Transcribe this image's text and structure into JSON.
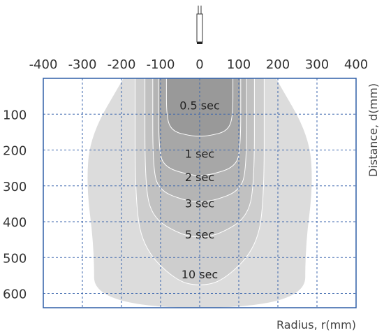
{
  "chart_data": {
    "type": "area",
    "x_axis": {
      "label": "Radius, r(mm)",
      "range": [
        -400,
        400
      ],
      "ticks": [
        -400,
        -300,
        -200,
        -100,
        0,
        100,
        200,
        300,
        400
      ],
      "tick_labels": [
        "-400",
        "-300",
        "-200",
        "-100",
        "0",
        "100",
        "200",
        "300",
        "400"
      ],
      "position": "top"
    },
    "y_axis": {
      "label": "Distance, d(mm)",
      "range": [
        0,
        640
      ],
      "ticks": [
        100,
        200,
        300,
        400,
        500,
        600
      ],
      "tick_labels": [
        "100",
        "200",
        "300",
        "400",
        "500",
        "600"
      ],
      "inverted": true
    },
    "grid": true,
    "colors": {
      "frame": "#2f5ea7",
      "grid": "#3b66ad",
      "zones": [
        "#dcdcdc",
        "#cecece",
        "#c1c1c1",
        "#b4b4b4",
        "#a7a7a7",
        "#999999"
      ],
      "contour": "#ffffff"
    },
    "series": [
      {
        "name": "10 sec",
        "label_at": [
          0,
          546
        ],
        "points": [
          [
            -195,
            0
          ],
          [
            -280,
            160
          ],
          [
            -290,
            300
          ],
          [
            -270,
            470
          ],
          [
            -270,
            640
          ],
          [
            270,
            640
          ],
          [
            270,
            470
          ],
          [
            290,
            300
          ],
          [
            280,
            160
          ],
          [
            195,
            0
          ]
        ]
      },
      {
        "name": "5 sec",
        "label_at": [
          0,
          435
        ],
        "points": [
          [
            -165,
            0
          ],
          [
            -165,
            360
          ],
          [
            -140,
            480
          ],
          [
            -60,
            565
          ],
          [
            0,
            580
          ],
          [
            60,
            565
          ],
          [
            140,
            480
          ],
          [
            165,
            360
          ],
          [
            165,
            0
          ]
        ]
      },
      {
        "name": "3 sec",
        "label_at": [
          0,
          348
        ],
        "points": [
          [
            -140,
            0
          ],
          [
            -140,
            300
          ],
          [
            -120,
            390
          ],
          [
            -50,
            435
          ],
          [
            0,
            445
          ],
          [
            50,
            435
          ],
          [
            120,
            390
          ],
          [
            140,
            300
          ],
          [
            140,
            0
          ]
        ]
      },
      {
        "name": "2 sec",
        "label_at": [
          0,
          275
        ],
        "points": [
          [
            -120,
            0
          ],
          [
            -120,
            260
          ],
          [
            -100,
            315
          ],
          [
            -40,
            340
          ],
          [
            0,
            345
          ],
          [
            40,
            340
          ],
          [
            100,
            315
          ],
          [
            120,
            260
          ],
          [
            120,
            0
          ]
        ]
      },
      {
        "name": "1 sec",
        "label_at": [
          0,
          210
        ],
        "points": [
          [
            -105,
            0
          ],
          [
            -105,
            210
          ],
          [
            -85,
            250
          ],
          [
            -30,
            268
          ],
          [
            0,
            272
          ],
          [
            30,
            268
          ],
          [
            85,
            250
          ],
          [
            105,
            210
          ],
          [
            105,
            0
          ]
        ]
      },
      {
        "name": "0.5 sec",
        "label_at": [
          0,
          75
        ],
        "points": [
          [
            -85,
            0
          ],
          [
            -85,
            110
          ],
          [
            -70,
            148
          ],
          [
            -25,
            160
          ],
          [
            0,
            162
          ],
          [
            25,
            160
          ],
          [
            70,
            148
          ],
          [
            85,
            110
          ],
          [
            85,
            0
          ]
        ]
      }
    ]
  }
}
